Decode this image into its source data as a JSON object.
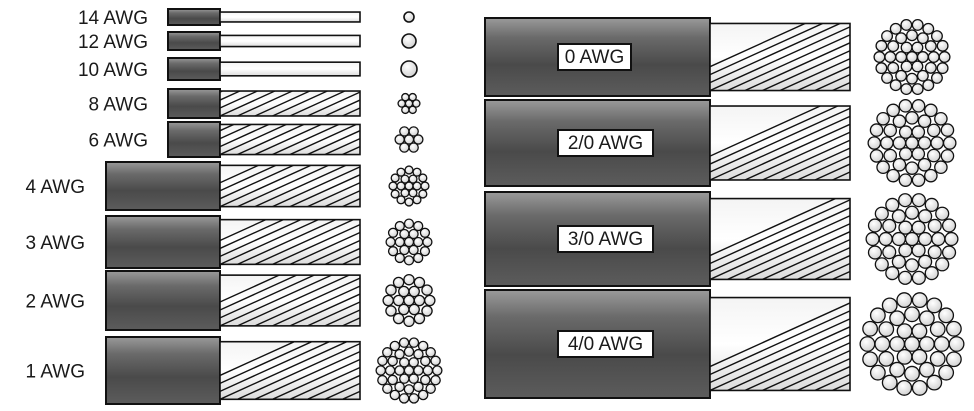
{
  "colors": {
    "insulation_dark": "#4a4a4a",
    "insulation_light": "#9c9c9c",
    "conductor": "#ffffff",
    "strand_fill": "#e6e6e6",
    "outline": "#111111"
  },
  "gauges_left": [
    {
      "label": "14 AWG",
      "type": "solid"
    },
    {
      "label": "12 AWG",
      "type": "solid"
    },
    {
      "label": "10 AWG",
      "type": "solid"
    },
    {
      "label": "8 AWG",
      "type": "stranded"
    },
    {
      "label": "6 AWG",
      "type": "stranded"
    },
    {
      "label": "4 AWG",
      "type": "stranded"
    },
    {
      "label": "3 AWG",
      "type": "stranded"
    },
    {
      "label": "2 AWG",
      "type": "stranded"
    },
    {
      "label": "1 AWG",
      "type": "stranded"
    }
  ],
  "gauges_right": [
    {
      "label": "0 AWG",
      "type": "stranded"
    },
    {
      "label": "2/0 AWG",
      "type": "stranded"
    },
    {
      "label": "3/0 AWG",
      "type": "stranded"
    },
    {
      "label": "4/0 AWG",
      "type": "stranded"
    }
  ]
}
